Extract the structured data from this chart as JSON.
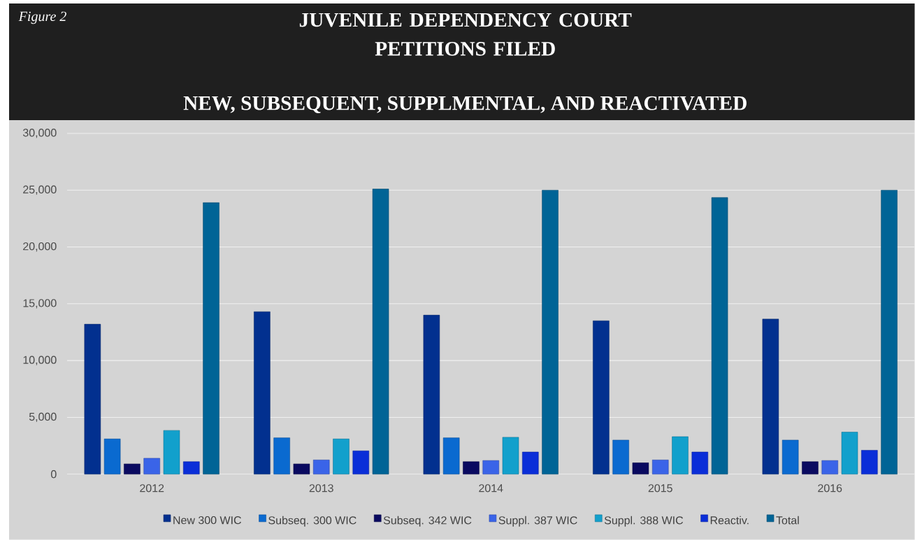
{
  "chart_data": {
    "type": "bar",
    "title": "JUVENILE DEPENDENCY COURT PETITIONS FILED",
    "subtitle": "NEW, SUBSEQUENT, SUPPLMENTAL, AND REACTIVATED",
    "annotations": [
      "Figure 2"
    ],
    "categories": [
      "2012",
      "2013",
      "2014",
      "2015",
      "2016"
    ],
    "series": [
      {
        "name": "New 300 WIC",
        "color": "#02308f",
        "values": [
          13200,
          14300,
          14000,
          13500,
          13650
        ]
      },
      {
        "name": "Subseq. 300 WIC",
        "color": "#0a6ad0",
        "values": [
          3100,
          3200,
          3200,
          3000,
          3000
        ]
      },
      {
        "name": "Subseq. 342 WIC",
        "color": "#0a0a60",
        "values": [
          900,
          900,
          1100,
          1000,
          1100
        ]
      },
      {
        "name": "Suppl. 387 WIC",
        "color": "#3a64e8",
        "values": [
          1400,
          1250,
          1200,
          1250,
          1200
        ]
      },
      {
        "name": "Suppl. 388 WIC",
        "color": "#12a0cc",
        "values": [
          3850,
          3100,
          3250,
          3300,
          3700
        ]
      },
      {
        "name": "Reactiv.",
        "color": "#0a2ed8",
        "values": [
          1100,
          2050,
          1950,
          1950,
          2100
        ]
      },
      {
        "name": "Total",
        "color": "#006496",
        "values": [
          23900,
          25100,
          25000,
          24350,
          25000
        ]
      }
    ],
    "ylim": [
      0,
      30000
    ],
    "yticks": [
      0,
      {
        "value": 5000,
        "label": "5,000"
      },
      {
        "value": 10000,
        "label": "10,000"
      },
      {
        "value": 15000,
        "label": "15,000"
      },
      {
        "value": 20000,
        "label": "20,000"
      },
      {
        "value": 25000,
        "label": "25,000"
      },
      {
        "value": 30000,
        "label": "30,000"
      }
    ],
    "grid": "y",
    "legend": "bottom"
  }
}
